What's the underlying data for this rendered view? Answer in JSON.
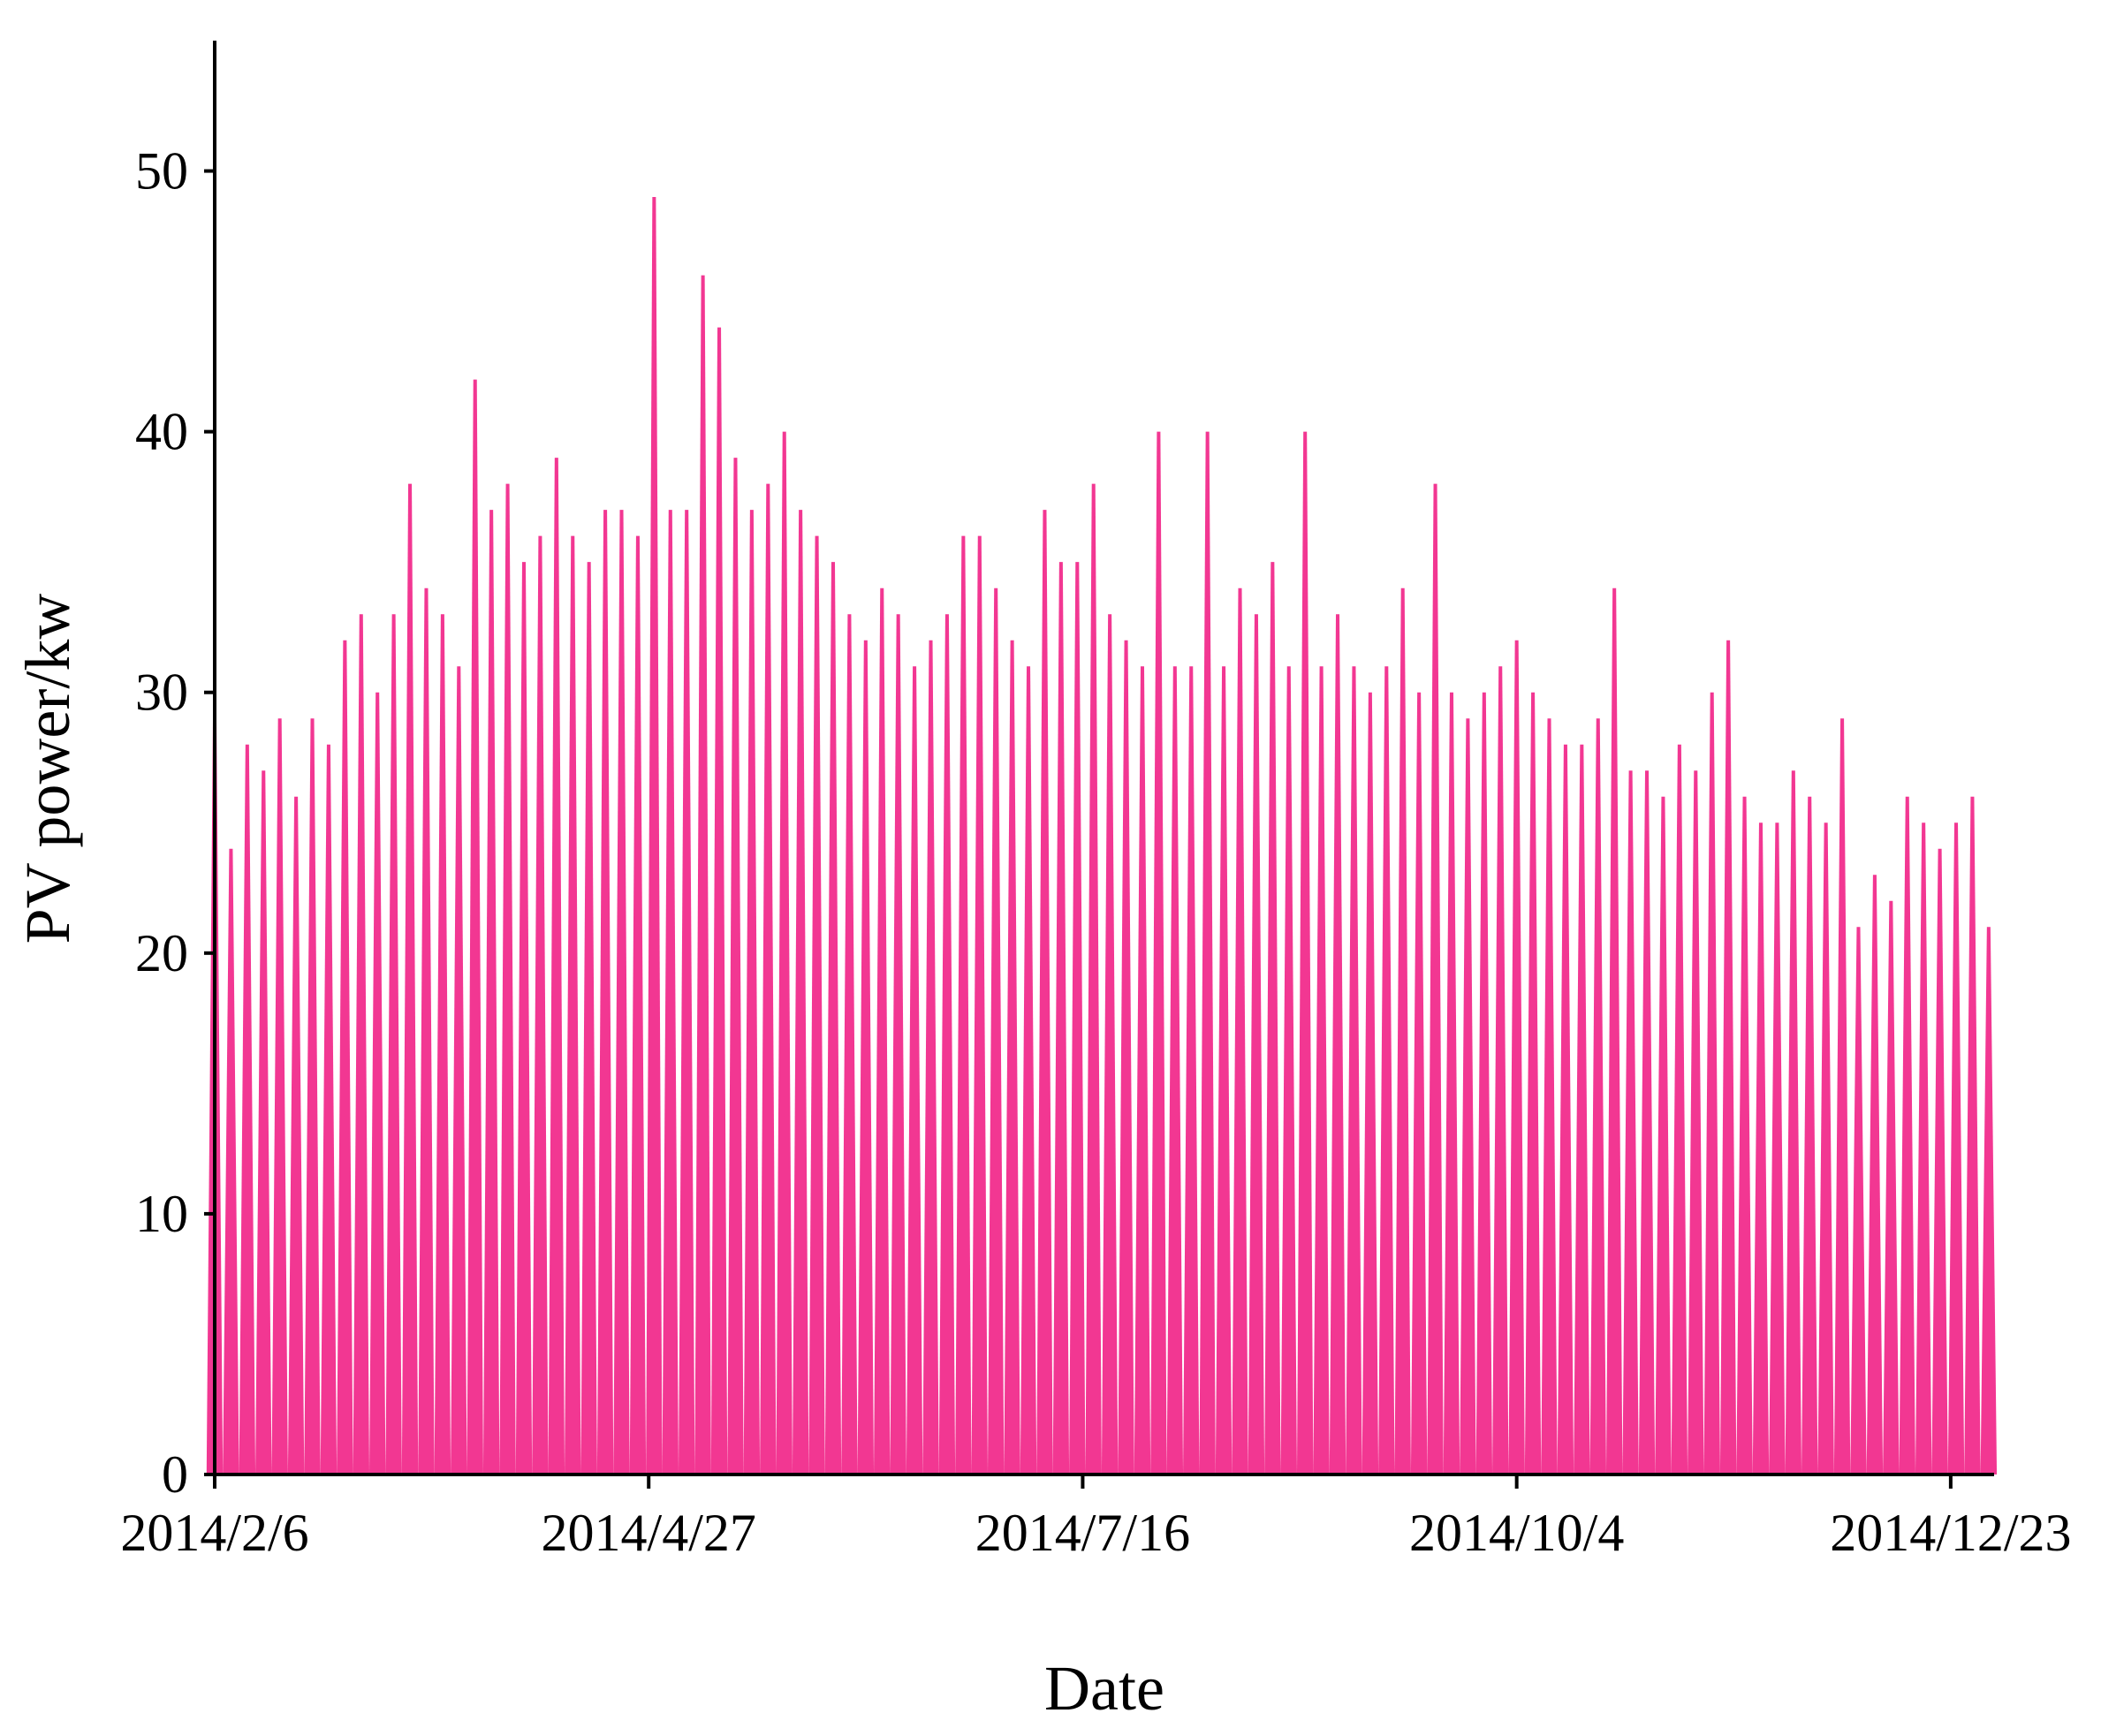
{
  "chart_data": {
    "type": "spike",
    "xlabel": "Date",
    "ylabel": "PV power/kw",
    "color": "#f0147f",
    "x": [
      "2014/2/6",
      "2014/2/9",
      "2014/2/12",
      "2014/2/15",
      "2014/2/18",
      "2014/2/21",
      "2014/2/24",
      "2014/2/27",
      "2014/3/2",
      "2014/3/5",
      "2014/3/8",
      "2014/3/11",
      "2014/3/14",
      "2014/3/17",
      "2014/3/20",
      "2014/3/23",
      "2014/3/26",
      "2014/3/29",
      "2014/4/1",
      "2014/4/4",
      "2014/4/7",
      "2014/4/10",
      "2014/4/13",
      "2014/4/16",
      "2014/4/19",
      "2014/4/22",
      "2014/4/25",
      "2014/4/28",
      "2014/5/1",
      "2014/5/4",
      "2014/5/7",
      "2014/5/10",
      "2014/5/13",
      "2014/5/16",
      "2014/5/19",
      "2014/5/22",
      "2014/5/25",
      "2014/5/28",
      "2014/5/31",
      "2014/6/3",
      "2014/6/6",
      "2014/6/9",
      "2014/6/12",
      "2014/6/15",
      "2014/6/18",
      "2014/6/21",
      "2014/6/24",
      "2014/6/27",
      "2014/6/30",
      "2014/7/3",
      "2014/7/6",
      "2014/7/9",
      "2014/7/12",
      "2014/7/15",
      "2014/7/18",
      "2014/7/21",
      "2014/7/24",
      "2014/7/27",
      "2014/7/30",
      "2014/8/2",
      "2014/8/5",
      "2014/8/8",
      "2014/8/11",
      "2014/8/14",
      "2014/8/17",
      "2014/8/20",
      "2014/8/23",
      "2014/8/26",
      "2014/8/29",
      "2014/9/1",
      "2014/9/4",
      "2014/9/7",
      "2014/9/10",
      "2014/9/13",
      "2014/9/16",
      "2014/9/19",
      "2014/9/22",
      "2014/9/25",
      "2014/9/28",
      "2014/10/1",
      "2014/10/4",
      "2014/10/7",
      "2014/10/10",
      "2014/10/13",
      "2014/10/16",
      "2014/10/19",
      "2014/10/22",
      "2014/10/25",
      "2014/10/28",
      "2014/10/31",
      "2014/11/3",
      "2014/11/6",
      "2014/11/9",
      "2014/11/12",
      "2014/11/15",
      "2014/11/18",
      "2014/11/21",
      "2014/11/24",
      "2014/11/27",
      "2014/11/30",
      "2014/12/3",
      "2014/12/6",
      "2014/12/9",
      "2014/12/12",
      "2014/12/15",
      "2014/12/18",
      "2014/12/21",
      "2014/12/24",
      "2014/12/27",
      "2014/12/30"
    ],
    "values": [
      29,
      24,
      28,
      27,
      29,
      26,
      29,
      28,
      32,
      33,
      30,
      33,
      38,
      34,
      33,
      31,
      42,
      37,
      38,
      35,
      36,
      39,
      36,
      35,
      37,
      37,
      36,
      49,
      37,
      37,
      46,
      44,
      39,
      37,
      38,
      40,
      37,
      36,
      35,
      33,
      32,
      34,
      33,
      31,
      32,
      33,
      36,
      36,
      34,
      32,
      31,
      37,
      35,
      35,
      38,
      33,
      32,
      31,
      40,
      31,
      31,
      40,
      31,
      34,
      33,
      35,
      31,
      40,
      31,
      33,
      31,
      30,
      31,
      34,
      30,
      38,
      30,
      29,
      30,
      31,
      32,
      30,
      29,
      28,
      28,
      29,
      34,
      27,
      27,
      26,
      28,
      27,
      30,
      32,
      26,
      25,
      25,
      27,
      26,
      25,
      29,
      21,
      23,
      22,
      26,
      25,
      24,
      25,
      26,
      21
    ],
    "xlim": [
      "2014/2/6",
      "2014/12/31"
    ],
    "xticks": [
      "2014/2/6",
      "2014/4/27",
      "2014/7/16",
      "2014/10/4",
      "2014/12/23"
    ],
    "ylim": [
      0,
      55
    ],
    "yticks": [
      0,
      10,
      20,
      30,
      40,
      50
    ]
  }
}
